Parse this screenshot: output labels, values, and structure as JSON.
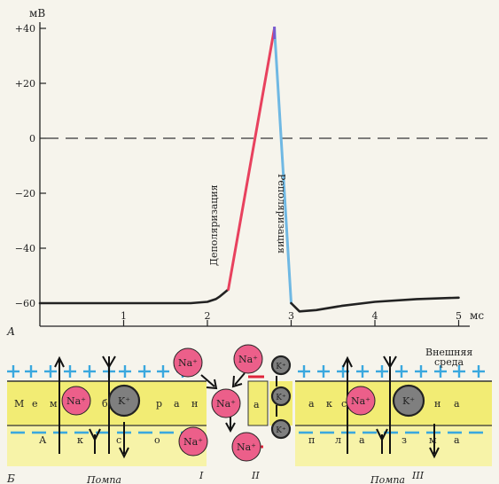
{
  "colors": {
    "paper": "#f6f4ec",
    "depol": "#e8415e",
    "repol": "#6fb8e3",
    "membrane": "#f2ec74",
    "na_ion": "#ec5f8a",
    "k_ion": "#7f7f7f",
    "plus_sign": "#3aa8de",
    "minus_sign": "#3aa8de",
    "red_mark": "#e0233a"
  },
  "chart_data": {
    "type": "line",
    "ylabel": "мВ",
    "xlabel": "мс",
    "xlim": [
      0,
      5.3
    ],
    "ylim": [
      -66,
      42
    ],
    "yticks": [
      40,
      20,
      0,
      -20,
      -40,
      -60
    ],
    "ytick_labels": [
      "+40",
      "+20",
      "0",
      "−20",
      "−40",
      "−60"
    ],
    "xticks": [
      1,
      2,
      3,
      4,
      5
    ],
    "xtick_labels": [
      "1",
      "2",
      "3",
      "4",
      "5"
    ],
    "zero_line": "dashed",
    "series": [
      {
        "name": "",
        "segment": "resting",
        "color": "#222222",
        "x": [
          0,
          0.5,
          1.0,
          1.5,
          1.8,
          2.0,
          2.1,
          2.15,
          2.25
        ],
        "y": [
          -60,
          -60,
          -60,
          -60,
          -60,
          -59.5,
          -58.5,
          -57.5,
          -55
        ]
      },
      {
        "name": "",
        "segment": "depolarization",
        "color": "#e8415e",
        "x": [
          2.25,
          2.8
        ],
        "y": [
          -55,
          40
        ]
      },
      {
        "name": "",
        "segment": "repolarization",
        "color": "#6fb8e3",
        "x": [
          2.8,
          3.0
        ],
        "y": [
          40,
          -60
        ]
      },
      {
        "name": "",
        "segment": "after",
        "color": "#222222",
        "x": [
          3.0,
          3.1,
          3.3,
          3.6,
          4.0,
          4.5,
          5.0
        ],
        "y": [
          -60,
          -63,
          -62.5,
          -61,
          -59.5,
          -58.5,
          -58
        ]
      }
    ],
    "annotations": [
      "Деполяризация",
      "Реполяризация"
    ]
  },
  "labels": {
    "panel_a": "А",
    "panel_b": "Б",
    "depol": "Деполяризация",
    "repol": "Реполяризация",
    "outer": "Внешняя",
    "outer2": "среда",
    "pump1": "Помпа",
    "pump2": "Помпа",
    "stage1": "I",
    "stage2": "II",
    "stage3": "III",
    "na": "Na⁺",
    "k": "K⁺",
    "membrane_left": [
      "М",
      "е",
      "м",
      "б",
      "р",
      "а",
      "н"
    ],
    "membrane_right": [
      "а",
      "к",
      "с",
      "о",
      "н",
      "а"
    ],
    "axon_left": [
      "А",
      "к",
      "с",
      "о"
    ],
    "axon_right": [
      "п",
      "л",
      "а",
      "з",
      "м",
      "а"
    ],
    "channel_letter": "а"
  }
}
